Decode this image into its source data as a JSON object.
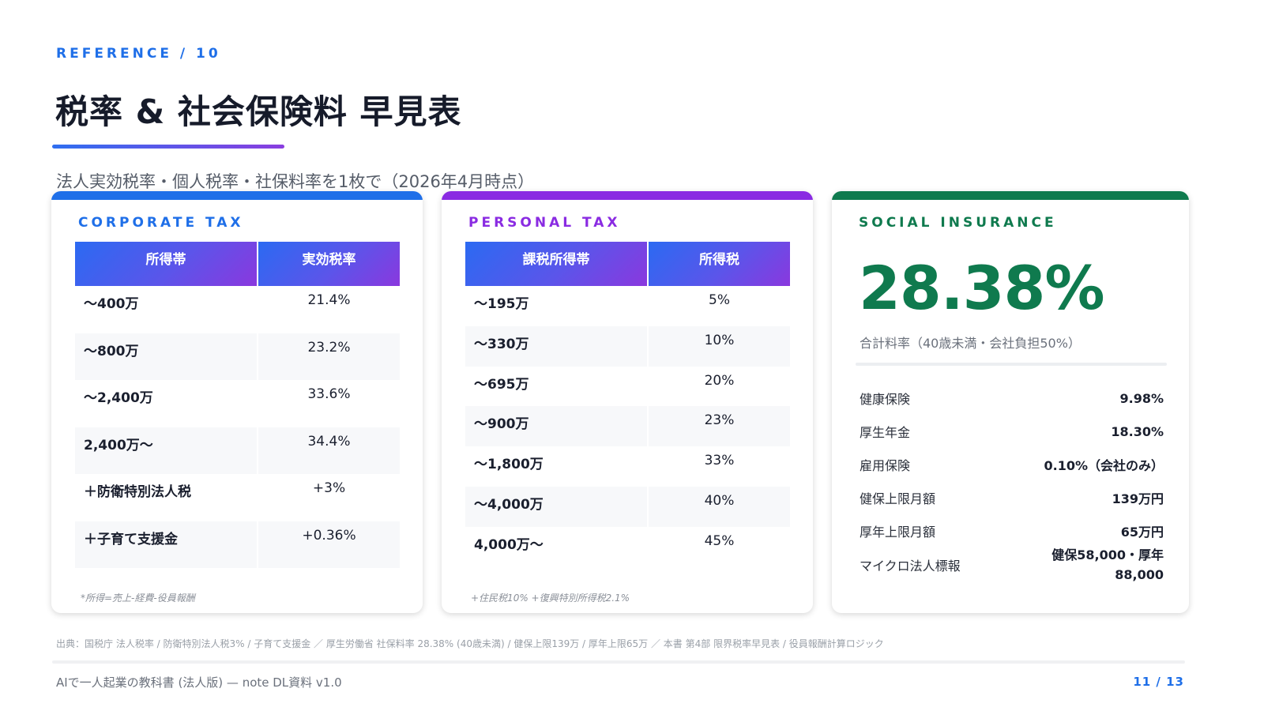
{
  "header": {
    "eyebrow": "REFERENCE / 10",
    "title": "税率 & 社会保険料 早見表",
    "subtitle": "法人実効税率・個人税率・社保料率を1枚で（2026年4月時点）"
  },
  "corporate": {
    "label": "CORPORATE TAX",
    "color": "#1f6fe8",
    "columns": [
      "所得帯",
      "実効税率"
    ],
    "rows": [
      [
        "〜400万",
        "21.4%"
      ],
      [
        "〜800万",
        "23.2%"
      ],
      [
        "〜2,400万",
        "33.6%"
      ],
      [
        "2,400万〜",
        "34.4%"
      ],
      [
        "＋防衛特別法人税",
        "+3%"
      ],
      [
        "＋子育て支援金",
        "+0.36%"
      ]
    ],
    "footnote": "*所得=売上-経費-役員報酬"
  },
  "personal": {
    "label": "PERSONAL TAX",
    "color": "#8a2be2",
    "columns": [
      "課税所得帯",
      "所得税"
    ],
    "rows": [
      [
        "〜195万",
        "5%"
      ],
      [
        "〜330万",
        "10%"
      ],
      [
        "〜695万",
        "20%"
      ],
      [
        "〜900万",
        "23%"
      ],
      [
        "〜1,800万",
        "33%"
      ],
      [
        "〜4,000万",
        "40%"
      ],
      [
        "4,000万〜",
        "45%"
      ]
    ],
    "footnote": "+住民税10% +復興特別所得税2.1%"
  },
  "social": {
    "label": "SOCIAL INSURANCE",
    "color": "#0f7a4e",
    "total_rate": "28.38%",
    "total_caption": "合計料率（40歳未満・会社負担50%）",
    "items": [
      {
        "key": "健康保険",
        "value": "9.98%"
      },
      {
        "key": "厚生年金",
        "value": "18.30%"
      },
      {
        "key": "雇用保険",
        "value": "0.10%（会社のみ）"
      },
      {
        "key": "健保上限月額",
        "value": "139万円"
      },
      {
        "key": "厚年上限月額",
        "value": "65万円"
      },
      {
        "key": "マイクロ法人標報",
        "value": "健保58,000・厚年88,000"
      }
    ]
  },
  "footer": {
    "source": "出典：国税庁 法人税率 / 防衛特別法人税3% / 子育て支援金 ／ 厚生労働省 社保料率 28.38% (40歳未満) / 健保上限139万 / 厚年上限65万 ／ 本書 第4部 限界税率早見表 / 役員報酬計算ロジック",
    "doc_name": "AIで一人起業の教科書 (法人版) — note DL資料 v1.0",
    "page": "11 / 13"
  }
}
